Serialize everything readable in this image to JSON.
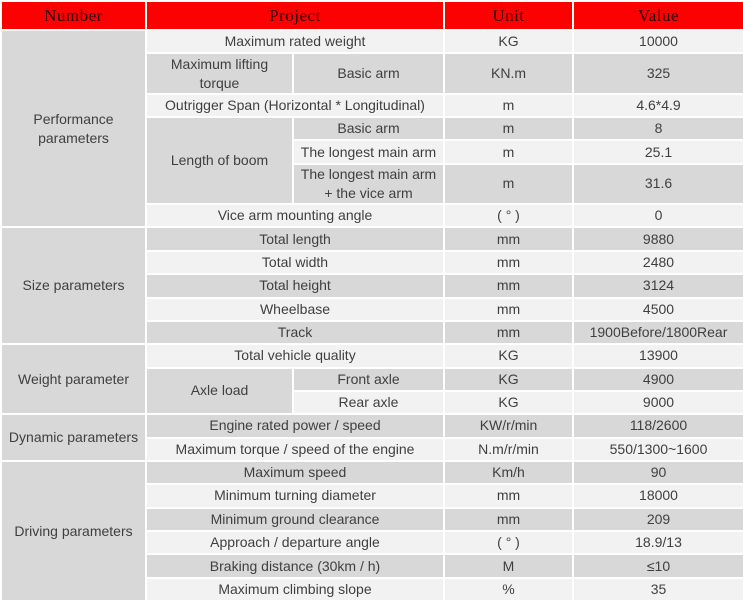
{
  "colors": {
    "header_bg": "#fe0000",
    "header_text": "#2a0000",
    "row_light": "#f2f2f2",
    "row_dark": "#d8d8d8",
    "body_text": "#3f3f3f"
  },
  "table": {
    "columns": [
      "Number",
      "Project",
      "Unit",
      "Value"
    ],
    "sections": [
      {
        "label": "Performance parameters",
        "rows": [
          {
            "project": "Maximum rated weight",
            "unit": "KG",
            "value": "10000"
          },
          {
            "project": "Maximum lifting torque",
            "sub": "Basic arm",
            "unit": "KN.m",
            "value": "325"
          },
          {
            "project": "Outrigger Span (Horizontal * Longitudinal)",
            "unit": "m",
            "value": "4.6*4.9"
          },
          {
            "group": "Length of boom",
            "group_span": 3,
            "sub": "Basic arm",
            "unit": "m",
            "value": "8"
          },
          {
            "sub": "The longest main arm",
            "unit": "m",
            "value": "25.1"
          },
          {
            "sub": "The longest main arm + the vice arm",
            "unit": "m",
            "value": "31.6"
          },
          {
            "project": "Vice arm mounting angle",
            "unit": "( ° )",
            "value": "0"
          }
        ]
      },
      {
        "label": "Size parameters",
        "rows": [
          {
            "project": "Total length",
            "unit": "mm",
            "value": "9880"
          },
          {
            "project": "Total width",
            "unit": "mm",
            "value": "2480"
          },
          {
            "project": "Total height",
            "unit": "mm",
            "value": "3124"
          },
          {
            "project": "Wheelbase",
            "unit": "mm",
            "value": "4500"
          },
          {
            "project": "Track",
            "unit": "mm",
            "value": "1900Before/1800Rear"
          }
        ]
      },
      {
        "label": "Weight parameter",
        "rows": [
          {
            "project": "Total vehicle quality",
            "unit": "KG",
            "value": "13900"
          },
          {
            "group": "Axle load",
            "group_span": 2,
            "sub": "Front axle",
            "unit": "KG",
            "value": "4900"
          },
          {
            "sub": "Rear axle",
            "unit": "KG",
            "value": "9000"
          }
        ]
      },
      {
        "label": "Dynamic parameters",
        "rows": [
          {
            "project": "Engine rated power / speed",
            "unit": "KW/r/min",
            "value": "118/2600"
          },
          {
            "project": "Maximum torque / speed of the engine",
            "unit": "N.m/r/min",
            "value": "550/1300~1600"
          }
        ]
      },
      {
        "label": "Driving parameters",
        "rows": [
          {
            "project": "Maximum speed",
            "unit": "Km/h",
            "value": "90"
          },
          {
            "project": "Minimum turning diameter",
            "unit": "mm",
            "value": "18000"
          },
          {
            "project": "Minimum ground clearance",
            "unit": "mm",
            "value": "209"
          },
          {
            "project": "Approach / departure angle",
            "unit": "( ° )",
            "value": "18.9/13"
          },
          {
            "project": "Braking distance (30km / h)",
            "unit": "M",
            "value": "≤10"
          },
          {
            "project": "Maximum climbing slope",
            "unit": "%",
            "value": "35"
          }
        ]
      }
    ]
  }
}
